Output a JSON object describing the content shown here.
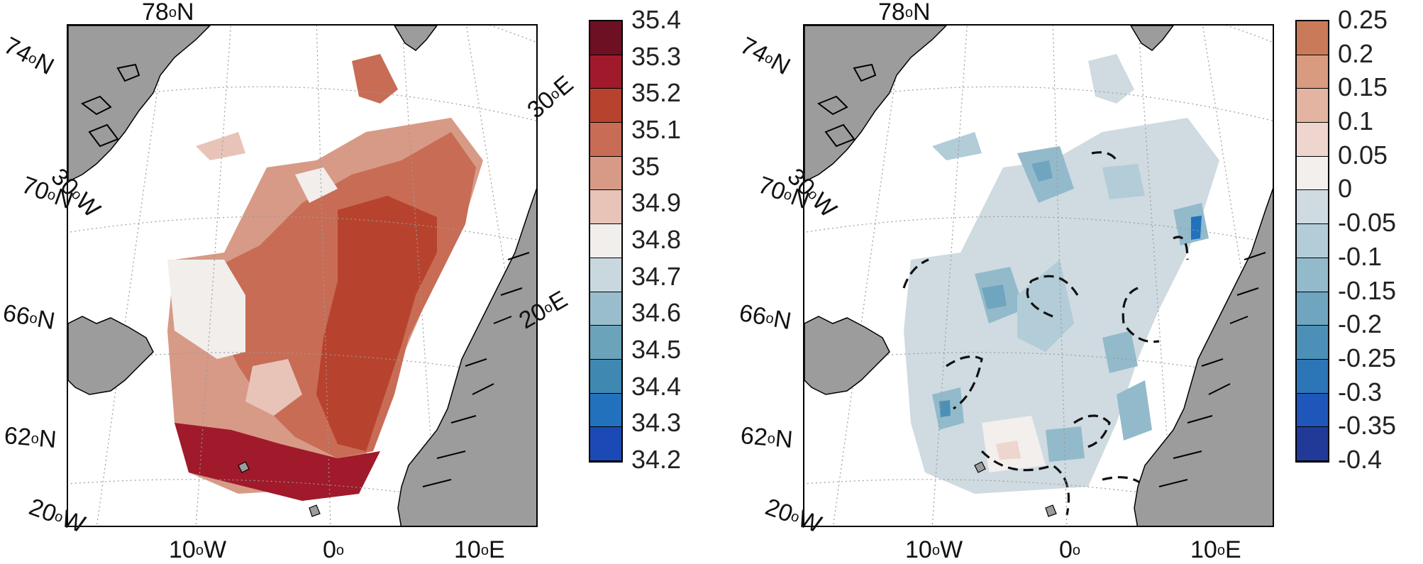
{
  "panels": [
    {
      "id": "mean-salinity",
      "colorbar": {
        "labels": [
          "35.4",
          "35.3",
          "35.2",
          "35.1",
          "35",
          "34.9",
          "34.8",
          "34.7",
          "34.6",
          "34.5",
          "34.4",
          "34.3",
          "34.2"
        ],
        "colors": [
          "#6e1024",
          "#a01a2b",
          "#b7432e",
          "#c86c55",
          "#d79a86",
          "#e8c3b8",
          "#f2eeec",
          "#c9d8df",
          "#99bdcc",
          "#6ba3ba",
          "#3f88b2",
          "#2271bd",
          "#1b4ab6"
        ]
      }
    },
    {
      "id": "salinity-trend",
      "colorbar": {
        "labels": [
          "0.25",
          "0.2",
          "0.15",
          "0.1",
          "0.05",
          "0",
          "-0.05",
          "-0.1",
          "-0.15",
          "-0.2",
          "-0.25",
          "-0.3",
          "-0.35",
          "-0.4"
        ],
        "colors": [
          "#c97a59",
          "#d89b80",
          "#e4b4a3",
          "#eed5cd",
          "#f3efec",
          "#cfdbe1",
          "#b2ccd8",
          "#93bacb",
          "#6fa5bf",
          "#4c90b7",
          "#2c75b6",
          "#1f56b9",
          "#213a98"
        ]
      }
    }
  ],
  "labels": {
    "lat_78": "78",
    "lat_74": "74",
    "lat_70": "70",
    "lat_66": "66",
    "lat_62": "62",
    "lon_30w": "30",
    "lon_20w": "20",
    "lon_10w": "10",
    "lon_0": "0",
    "lon_10e": "10",
    "lon_20e": "20",
    "lon_30e": "30",
    "deg": "o",
    "N": "N",
    "W": "W",
    "E": "E"
  },
  "colors": {
    "land": "#9c9c9c",
    "grid": "#9a9a9a"
  }
}
